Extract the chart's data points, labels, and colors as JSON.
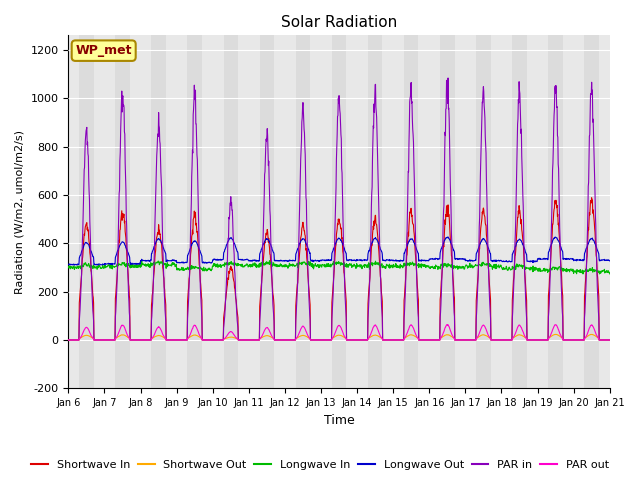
{
  "title": "Solar Radiation",
  "xlabel": "Time",
  "ylabel": "Radiation (W/m2, umol/m2/s)",
  "ylim": [
    -200,
    1260
  ],
  "yticks": [
    -200,
    0,
    200,
    400,
    600,
    800,
    1000,
    1200
  ],
  "xtick_labels": [
    "Jan 6",
    "Jan 7",
    "Jan 8",
    "Jan 9",
    "Jan 10",
    "Jan 11",
    "Jan 12",
    "Jan 13",
    "Jan 14",
    "Jan 15",
    "Jan 16",
    "Jan 17",
    "Jan 18",
    "Jan 19",
    "Jan 20",
    "Jan 21"
  ],
  "plot_bg_day": "#dcdcdc",
  "plot_bg_night": "#e8e8e8",
  "line_colors": {
    "sw_in": "#dd0000",
    "sw_out": "#ffaa00",
    "lw_in": "#00bb00",
    "lw_out": "#0000cc",
    "par_in": "#8800bb",
    "par_out": "#ff00cc"
  },
  "legend_labels": [
    "Shortwave In",
    "Shortwave Out",
    "Longwave In",
    "Longwave Out",
    "PAR in",
    "PAR out"
  ],
  "annotation_text": "WP_met",
  "annotation_box_color": "#ffff99",
  "annotation_border_color": "#aa8800",
  "sw_in_peaks": [
    480,
    530,
    460,
    510,
    300,
    450,
    470,
    500,
    500,
    530,
    540,
    530,
    530,
    580,
    570
  ],
  "par_in_peaks": [
    870,
    1030,
    900,
    1000,
    580,
    860,
    940,
    1010,
    1020,
    1030,
    1050,
    1010,
    1010,
    1060,
    1025
  ],
  "lw_in_base": [
    300,
    305,
    310,
    292,
    308,
    308,
    308,
    308,
    305,
    305,
    300,
    305,
    295,
    288,
    282
  ],
  "lw_out_base": [
    312,
    315,
    328,
    320,
    332,
    328,
    328,
    330,
    330,
    328,
    335,
    328,
    325,
    335,
    330
  ]
}
